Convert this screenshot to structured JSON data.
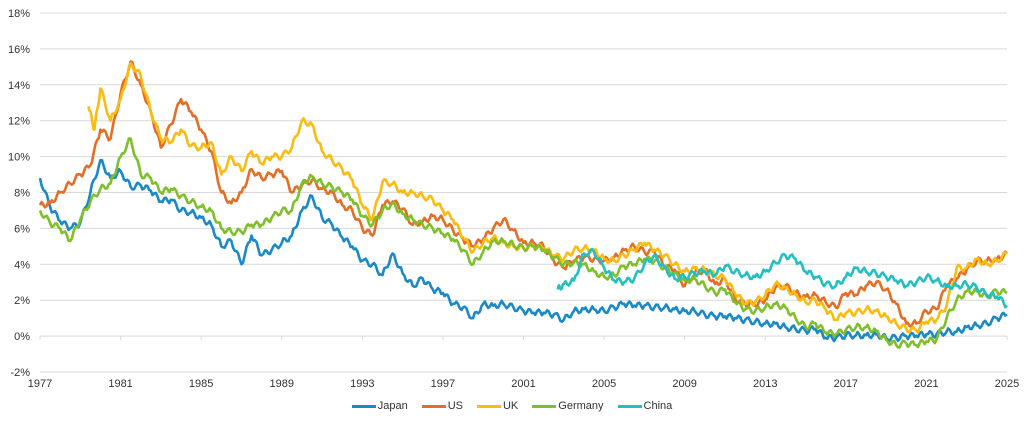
{
  "chart_data": {
    "type": "line",
    "title": "",
    "xlabel": "",
    "ylabel": "",
    "xlim": [
      1977,
      2025
    ],
    "ylim": [
      -2,
      18
    ],
    "grid": true,
    "legend_position": "bottom",
    "x_ticks": [
      "1977",
      "1981",
      "1985",
      "1989",
      "1993",
      "1997",
      "2001",
      "2005",
      "2009",
      "2013",
      "2017",
      "2021",
      "2025"
    ],
    "y_ticks": [
      "-2%",
      "0%",
      "2%",
      "4%",
      "6%",
      "8%",
      "10%",
      "12%",
      "14%",
      "16%",
      "18%"
    ],
    "series": [
      {
        "name": "Japan",
        "color": "#1a8ac6",
        "x": [
          1977,
          1977.5,
          1978,
          1978.5,
          1979,
          1979.5,
          1980,
          1980.5,
          1981,
          1981.5,
          1982,
          1982.5,
          1983,
          1983.5,
          1984,
          1984.5,
          1985,
          1985.5,
          1986,
          1986.5,
          1987,
          1987.5,
          1988,
          1988.5,
          1989,
          1989.5,
          1990,
          1990.5,
          1991,
          1991.5,
          1992,
          1992.5,
          1993,
          1993.5,
          1994,
          1994.5,
          1995,
          1995.5,
          1996,
          1996.5,
          1997,
          1997.5,
          1998,
          1998.5,
          1999,
          1999.5,
          2000,
          2000.5,
          2001,
          2001.5,
          2002,
          2002.5,
          2003,
          2003.5,
          2004,
          2004.5,
          2005,
          2005.5,
          2006,
          2006.5,
          2007,
          2007.5,
          2008,
          2008.5,
          2009,
          2009.5,
          2010,
          2010.5,
          2011,
          2011.5,
          2012,
          2012.5,
          2013,
          2013.5,
          2014,
          2014.5,
          2015,
          2015.5,
          2016,
          2016.5,
          2017,
          2017.5,
          2018,
          2018.5,
          2019,
          2019.5,
          2020,
          2020.5,
          2021,
          2021.5,
          2022,
          2022.5,
          2023,
          2023.5,
          2024,
          2024.5,
          2025
        ],
        "y": [
          8.8,
          7.2,
          6.4,
          6.0,
          6.3,
          8.0,
          9.8,
          8.8,
          9.2,
          8.3,
          8.4,
          8.1,
          7.5,
          7.6,
          7.0,
          6.9,
          6.6,
          6.2,
          5.0,
          5.3,
          4.0,
          5.6,
          4.5,
          4.8,
          5.2,
          5.6,
          7.0,
          7.8,
          6.6,
          6.2,
          5.5,
          5.0,
          4.2,
          4.0,
          3.4,
          4.6,
          3.5,
          2.8,
          3.2,
          2.6,
          2.4,
          1.8,
          1.6,
          1.0,
          1.8,
          1.7,
          1.8,
          1.6,
          1.4,
          1.3,
          1.3,
          1.2,
          0.9,
          1.4,
          1.5,
          1.5,
          1.4,
          1.6,
          1.8,
          1.7,
          1.7,
          1.6,
          1.6,
          1.5,
          1.4,
          1.4,
          1.2,
          1.1,
          1.1,
          1.0,
          0.9,
          0.8,
          0.7,
          0.7,
          0.5,
          0.4,
          0.3,
          0.4,
          -0.1,
          -0.1,
          0.05,
          0.05,
          0.05,
          0.1,
          -0.1,
          -0.1,
          0.0,
          0.02,
          0.1,
          0.1,
          0.25,
          0.25,
          0.5,
          0.6,
          0.7,
          1.0,
          1.2
        ]
      },
      {
        "name": "US",
        "color": "#e46e25",
        "x": [
          1977,
          1977.5,
          1978,
          1978.5,
          1979,
          1979.5,
          1980,
          1980.5,
          1981,
          1981.5,
          1982,
          1982.5,
          1983,
          1983.5,
          1984,
          1984.5,
          1985,
          1985.5,
          1986,
          1986.5,
          1987,
          1987.5,
          1988,
          1988.5,
          1989,
          1989.5,
          1990,
          1990.5,
          1991,
          1991.5,
          1992,
          1992.5,
          1993,
          1993.5,
          1994,
          1994.5,
          1995,
          1995.5,
          1996,
          1996.5,
          1997,
          1997.5,
          1998,
          1998.5,
          1999,
          1999.5,
          2000,
          2000.5,
          2001,
          2001.5,
          2002,
          2002.5,
          2003,
          2003.5,
          2004,
          2004.5,
          2005,
          2005.5,
          2006,
          2006.5,
          2007,
          2007.5,
          2008,
          2008.5,
          2009,
          2009.5,
          2010,
          2010.5,
          2011,
          2011.5,
          2012,
          2012.5,
          2013,
          2013.5,
          2014,
          2014.5,
          2015,
          2015.5,
          2016,
          2016.5,
          2017,
          2017.5,
          2018,
          2018.5,
          2019,
          2019.5,
          2020,
          2020.5,
          2021,
          2021.5,
          2022,
          2022.5,
          2023,
          2023.5,
          2024,
          2024.5,
          2025
        ],
        "y": [
          7.3,
          7.4,
          8.0,
          8.5,
          9.0,
          9.5,
          11.5,
          11.0,
          13.5,
          15.3,
          14.0,
          12.5,
          10.5,
          11.8,
          13.2,
          12.5,
          11.5,
          10.3,
          8.0,
          7.4,
          8.0,
          9.3,
          8.8,
          9.0,
          9.2,
          8.0,
          8.4,
          8.7,
          8.2,
          8.0,
          7.3,
          7.0,
          6.0,
          5.6,
          7.3,
          7.5,
          7.1,
          6.2,
          6.4,
          6.7,
          6.5,
          5.9,
          5.4,
          5.0,
          5.4,
          6.0,
          6.5,
          5.9,
          5.2,
          5.2,
          5.0,
          4.2,
          3.8,
          4.2,
          4.4,
          4.3,
          4.2,
          4.4,
          4.8,
          5.0,
          4.7,
          4.7,
          3.9,
          3.7,
          2.8,
          3.5,
          3.7,
          2.9,
          3.2,
          2.1,
          1.8,
          1.7,
          2.0,
          2.7,
          2.8,
          2.4,
          2.2,
          2.3,
          1.9,
          1.6,
          2.4,
          2.3,
          2.8,
          3.0,
          2.6,
          1.8,
          0.7,
          0.7,
          1.4,
          1.5,
          2.8,
          3.2,
          3.7,
          4.2,
          4.2,
          4.3,
          4.6
        ]
      },
      {
        "name": "UK",
        "color": "#fbbb10",
        "x": [
          1979.4,
          1979.7,
          1980,
          1980.5,
          1981,
          1981.5,
          1982,
          1982.5,
          1983,
          1983.5,
          1984,
          1984.5,
          1985,
          1985.5,
          1986,
          1986.5,
          1987,
          1987.5,
          1988,
          1988.5,
          1989,
          1989.5,
          1990,
          1990.5,
          1991,
          1991.5,
          1992,
          1992.5,
          1993,
          1993.5,
          1994,
          1994.5,
          1995,
          1995.5,
          1996,
          1996.5,
          1997,
          1997.5,
          1998,
          1998.5,
          1999,
          1999.5,
          2000,
          2000.5,
          2001,
          2001.5,
          2002,
          2002.5,
          2003,
          2003.5,
          2004,
          2004.5,
          2005,
          2005.5,
          2006,
          2006.5,
          2007,
          2007.5,
          2008,
          2008.5,
          2009,
          2009.5,
          2010,
          2010.5,
          2011,
          2011.5,
          2012,
          2012.5,
          2013,
          2013.5,
          2014,
          2014.5,
          2015,
          2015.5,
          2016,
          2016.5,
          2017,
          2017.5,
          2018,
          2018.5,
          2019,
          2019.5,
          2020,
          2020.5,
          2021,
          2021.5,
          2022,
          2022.5,
          2023,
          2023.5,
          2024,
          2024.5,
          2025
        ],
        "y": [
          12.8,
          11.5,
          13.8,
          12.0,
          13.2,
          15.2,
          14.5,
          12.5,
          11.0,
          10.8,
          11.5,
          10.6,
          10.5,
          10.8,
          9.0,
          10.0,
          9.2,
          10.3,
          9.6,
          10.0,
          10.0,
          10.5,
          12.0,
          11.8,
          10.3,
          9.8,
          9.3,
          8.7,
          7.3,
          6.5,
          8.6,
          8.5,
          8.0,
          8.0,
          7.8,
          7.6,
          7.0,
          6.5,
          5.5,
          4.7,
          5.2,
          5.5,
          5.2,
          5.0,
          4.9,
          5.0,
          4.9,
          4.5,
          4.3,
          4.8,
          4.9,
          4.8,
          4.3,
          4.2,
          4.5,
          4.8,
          5.2,
          4.8,
          4.5,
          4.0,
          3.6,
          3.8,
          3.7,
          3.4,
          3.2,
          2.4,
          1.8,
          1.9,
          2.3,
          2.9,
          2.7,
          2.3,
          1.9,
          2.0,
          1.5,
          0.9,
          1.3,
          1.3,
          1.5,
          1.4,
          1.1,
          0.7,
          0.4,
          0.3,
          0.8,
          0.9,
          1.7,
          3.8,
          3.8,
          4.3,
          4.0,
          4.2,
          4.6
        ]
      },
      {
        "name": "Germany",
        "color": "#7fbf2a",
        "x": [
          1977,
          1977.5,
          1978,
          1978.5,
          1979,
          1979.5,
          1980,
          1980.5,
          1981,
          1981.5,
          1982,
          1982.5,
          1983,
          1983.5,
          1984,
          1984.5,
          1985,
          1985.5,
          1986,
          1986.5,
          1987,
          1987.5,
          1988,
          1988.5,
          1989,
          1989.5,
          1990,
          1990.5,
          1991,
          1991.5,
          1992,
          1992.5,
          1993,
          1993.5,
          1994,
          1994.5,
          1995,
          1995.5,
          1996,
          1996.5,
          1997,
          1997.5,
          1998,
          1998.5,
          1999,
          1999.5,
          2000,
          2000.5,
          2001,
          2001.5,
          2002,
          2002.5,
          2003,
          2003.5,
          2004,
          2004.5,
          2005,
          2005.5,
          2006,
          2006.5,
          2007,
          2007.5,
          2008,
          2008.5,
          2009,
          2009.5,
          2010,
          2010.5,
          2011,
          2011.5,
          2012,
          2012.5,
          2013,
          2013.5,
          2014,
          2014.5,
          2015,
          2015.5,
          2016,
          2016.5,
          2017,
          2017.5,
          2018,
          2018.5,
          2019,
          2019.5,
          2020,
          2020.5,
          2021,
          2021.5,
          2022,
          2022.5,
          2023,
          2023.5,
          2024,
          2024.5,
          2025
        ],
        "y": [
          7.0,
          6.3,
          6.0,
          5.3,
          6.5,
          7.5,
          8.2,
          8.5,
          10.0,
          11.0,
          9.0,
          8.8,
          8.0,
          8.2,
          7.8,
          7.5,
          7.2,
          7.0,
          6.0,
          5.8,
          5.8,
          6.2,
          6.2,
          6.6,
          7.0,
          7.0,
          8.5,
          8.9,
          8.5,
          8.3,
          8.0,
          7.6,
          6.7,
          6.2,
          7.0,
          7.4,
          6.8,
          6.5,
          6.2,
          6.0,
          5.7,
          5.4,
          4.8,
          4.0,
          4.7,
          5.3,
          5.3,
          5.1,
          4.9,
          5.0,
          4.8,
          4.4,
          4.0,
          4.1,
          4.0,
          3.6,
          3.3,
          3.4,
          3.9,
          4.0,
          4.3,
          4.2,
          3.8,
          3.5,
          3.1,
          3.2,
          2.8,
          2.4,
          2.6,
          1.9,
          1.5,
          1.4,
          1.6,
          1.8,
          1.6,
          1.0,
          0.5,
          0.7,
          0.2,
          0.1,
          0.35,
          0.5,
          0.5,
          0.3,
          -0.2,
          -0.5,
          -0.4,
          -0.5,
          -0.3,
          -0.2,
          1.0,
          2.0,
          2.5,
          2.5,
          2.2,
          2.5,
          2.4
        ]
      },
      {
        "name": "China",
        "color": "#23bfc2",
        "x": [
          2002.7,
          2003,
          2003.5,
          2004,
          2004.5,
          2005,
          2005.5,
          2006,
          2006.5,
          2007,
          2007.5,
          2008,
          2008.5,
          2009,
          2009.5,
          2010,
          2010.5,
          2011,
          2011.5,
          2012,
          2012.5,
          2013,
          2013.5,
          2014,
          2014.5,
          2015,
          2015.5,
          2016,
          2016.5,
          2017,
          2017.5,
          2018,
          2018.5,
          2019,
          2019.5,
          2020,
          2020.5,
          2021,
          2021.5,
          2022,
          2022.5,
          2023,
          2023.5,
          2024,
          2024.5,
          2025
        ],
        "y": [
          2.6,
          2.9,
          3.1,
          4.6,
          4.7,
          3.8,
          3.1,
          3.0,
          3.2,
          4.0,
          4.5,
          3.8,
          3.2,
          3.3,
          3.5,
          3.6,
          3.4,
          3.9,
          3.6,
          3.4,
          3.3,
          3.6,
          4.1,
          4.5,
          4.3,
          3.6,
          3.3,
          2.9,
          2.8,
          3.3,
          3.8,
          3.6,
          3.5,
          3.3,
          3.1,
          2.8,
          3.0,
          3.3,
          3.1,
          2.8,
          2.8,
          2.9,
          2.7,
          2.3,
          2.2,
          1.7
        ]
      }
    ]
  }
}
